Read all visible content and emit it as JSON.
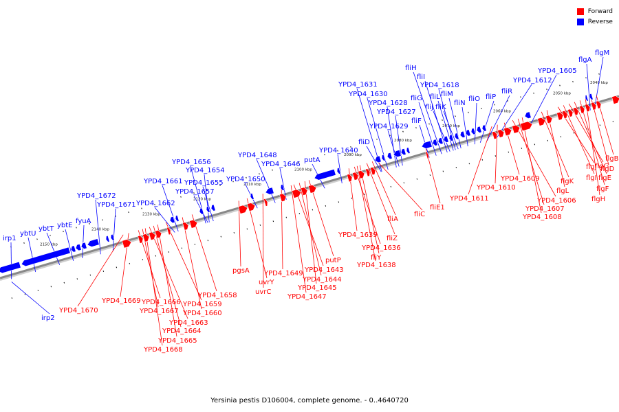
{
  "caption": "Yersinia pestis D106004, complete genome. - 0..4640720",
  "legend": [
    {
      "label": "Forward",
      "color": "#ff0000"
    },
    {
      "label": "Reverse",
      "color": "#0000ff"
    }
  ],
  "colors": {
    "forward": "#ff0000",
    "reverse": "#0000ff",
    "axis": "#888888"
  },
  "kbp_labels": [
    "2040 kbp",
    "2050 kbp",
    "2060 kbp",
    "2070 kbp",
    "2080 kbp",
    "2090 kbp",
    "2100 kbp",
    "2110 kbp",
    "2120 kbp",
    "2130 kbp",
    "2140 kbp",
    "2150 kbp"
  ],
  "reverse_labels": [
    "irp1",
    "ybtU",
    "ybtT",
    "ybtE",
    "fyuA",
    "YPD4_1672",
    "YPD4_1671",
    "YPD4_1662",
    "YPD4_1661",
    "YPD4_1656",
    "YPD4_1654",
    "YPD4_1655",
    "YPD4_1657",
    "YPD4_1650",
    "YPD4_1648",
    "YPD4_1646",
    "putA",
    "YPD4_1640",
    "YPD4_1631",
    "YPD4_1630",
    "YPD4_1628",
    "YPD4_1627",
    "YPD4_1629",
    "fliD",
    "fliH",
    "fliI",
    "fliJ",
    "fliG",
    "fliL",
    "fliK",
    "fliM",
    "YPD4_1618",
    "fliN",
    "fliO",
    "fliP",
    "fliR",
    "fliF",
    "YPD4_1612",
    "YPD4_1605",
    "flgA",
    "flgM",
    "irp2"
  ],
  "forward_labels": [
    "YPD4_1670",
    "YPD4_1669",
    "YPD4_1666",
    "YPD4_1667",
    "YPD4_1663",
    "YPD4_1664",
    "YPD4_1665",
    "YPD4_1668",
    "YPD4_1659",
    "YPD4_1660",
    "YPD4_1658",
    "pgsA",
    "uvrY",
    "uvrC",
    "YPD4_1649",
    "YPD4_1643",
    "YPD4_1644",
    "YPD4_1645",
    "YPD4_1647",
    "putP",
    "YPD4_1639",
    "YPD4_1636",
    "fliY",
    "YPD4_1638",
    "fliZ",
    "fliA",
    "fliC",
    "fliE1",
    "YPD4_1611",
    "YPD4_1610",
    "YPD4_1609",
    "YPD4_1606",
    "YPD4_1607",
    "YPD4_1608",
    "flgK",
    "flgL",
    "flgJ",
    "flgI",
    "flgG",
    "flgE",
    "flgF",
    "flgH",
    "flgB",
    "flgD"
  ]
}
